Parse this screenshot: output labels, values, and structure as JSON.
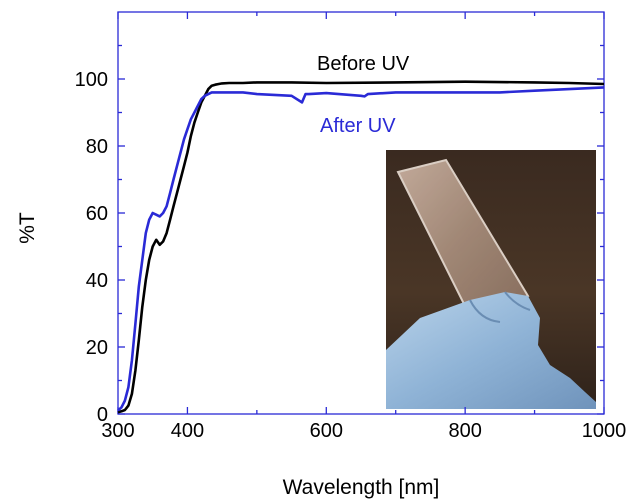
{
  "chart_data": {
    "type": "line",
    "xlabel": "Wavelength [nm]",
    "ylabel": "%T",
    "xlim": [
      300,
      1000
    ],
    "ylim": [
      0,
      120
    ],
    "x_ticks": [
      "300",
      "400",
      "600",
      "800",
      "1000"
    ],
    "x_tick_values": [
      300,
      400,
      600,
      800,
      1000
    ],
    "y_ticks": [
      "0",
      "20",
      "40",
      "60",
      "80",
      "100"
    ],
    "y_tick_values": [
      0,
      20,
      40,
      60,
      80,
      100
    ],
    "axis_color": "#2a2ad6",
    "grid": false,
    "series": [
      {
        "name": "Before UV",
        "color": "#000000",
        "x": [
          300,
          305,
          310,
          315,
          320,
          325,
          330,
          335,
          340,
          345,
          350,
          355,
          360,
          365,
          370,
          375,
          380,
          385,
          390,
          395,
          400,
          405,
          410,
          415,
          420,
          425,
          430,
          435,
          440,
          445,
          450,
          460,
          480,
          500,
          550,
          600,
          700,
          800,
          900,
          950,
          1000
        ],
        "values": [
          0.5,
          0.8,
          1.2,
          2.5,
          6,
          13,
          22,
          32,
          40,
          46,
          50,
          52,
          50.5,
          51.5,
          54,
          58,
          62,
          66,
          70,
          74,
          78,
          83,
          87,
          90,
          93,
          95,
          97,
          98,
          98.3,
          98.5,
          98.7,
          98.8,
          98.8,
          99,
          99,
          98.8,
          99,
          99.2,
          99,
          98.8,
          98.5
        ]
      },
      {
        "name": "After UV",
        "color": "#2a2ad6",
        "x": [
          300,
          305,
          310,
          315,
          320,
          325,
          330,
          335,
          340,
          345,
          350,
          355,
          360,
          365,
          370,
          375,
          380,
          385,
          390,
          395,
          400,
          405,
          410,
          415,
          420,
          425,
          430,
          435,
          440,
          450,
          460,
          480,
          500,
          550,
          565,
          570,
          575,
          600,
          650,
          655,
          660,
          700,
          750,
          800,
          850,
          900,
          950,
          1000
        ],
        "values": [
          1,
          2,
          4,
          8,
          16,
          27,
          38,
          46,
          54,
          58,
          60,
          59.5,
          59,
          60,
          62,
          66,
          70,
          74,
          78,
          82,
          85,
          88,
          90,
          92,
          94,
          95,
          95.5,
          96,
          96,
          96,
          96,
          96,
          95.5,
          95,
          93,
          95.5,
          95.5,
          95.8,
          95,
          94.8,
          95.5,
          96,
          96,
          96,
          96,
          96.5,
          97,
          97.5
        ]
      }
    ],
    "annotations": [
      {
        "text": "Before UV",
        "color": "#000000"
      },
      {
        "text": "After UV",
        "color": "#2a2ad6"
      }
    ],
    "inset": "photo of a transparent glass slide held by a light-blue gloved hand"
  }
}
